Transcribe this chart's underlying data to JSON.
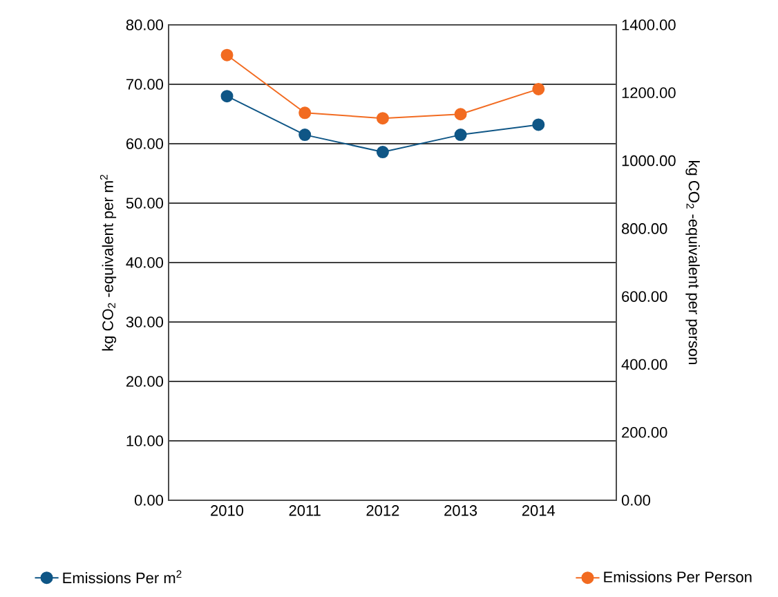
{
  "chart_data": {
    "type": "line",
    "categories": [
      "2010",
      "2011",
      "2012",
      "2013",
      "2014"
    ],
    "ylabel": "kg CO$_{2}$ -equivalent per m$^{2}$",
    "y2label": "kg CO$_{2}$ -equivalent per person",
    "ylim": [
      0,
      80
    ],
    "yticks": [
      {
        "value": 0,
        "label": "0.00"
      },
      {
        "value": 10,
        "label": "10.00"
      },
      {
        "value": 20,
        "label": "20.00"
      },
      {
        "value": 30,
        "label": "30.00"
      },
      {
        "value": 40,
        "label": "40.00"
      },
      {
        "value": 50,
        "label": "50.00"
      },
      {
        "value": 60,
        "label": "60.00"
      },
      {
        "value": 70,
        "label": "70.00"
      },
      {
        "value": 80,
        "label": "80.00"
      }
    ],
    "y2lim": [
      0,
      1400
    ],
    "y2ticks": [
      {
        "value": 0,
        "label": "0.00"
      },
      {
        "value": 200,
        "label": "200.00"
      },
      {
        "value": 400,
        "label": "400.00"
      },
      {
        "value": 600,
        "label": "600.00"
      },
      {
        "value": 800,
        "label": "800.00"
      },
      {
        "value": 1000,
        "label": "1000.00"
      },
      {
        "value": 1200,
        "label": "1200.00"
      },
      {
        "value": 1400,
        "label": "1400.00"
      }
    ],
    "series": [
      {
        "name": "Emissions Per m$^{2}$",
        "color": "#0f5686",
        "values": [
          68.0,
          61.5,
          58.6,
          61.5,
          63.2
        ]
      },
      {
        "name": "Emissions Per Person",
        "color": "#f26b21",
        "axis": "y2",
        "values": [
          1311,
          1141,
          1125,
          1137,
          1211
        ]
      }
    ],
    "grid": "y",
    "legend": "bottom",
    "marker": "circle",
    "line_style": "solid"
  }
}
